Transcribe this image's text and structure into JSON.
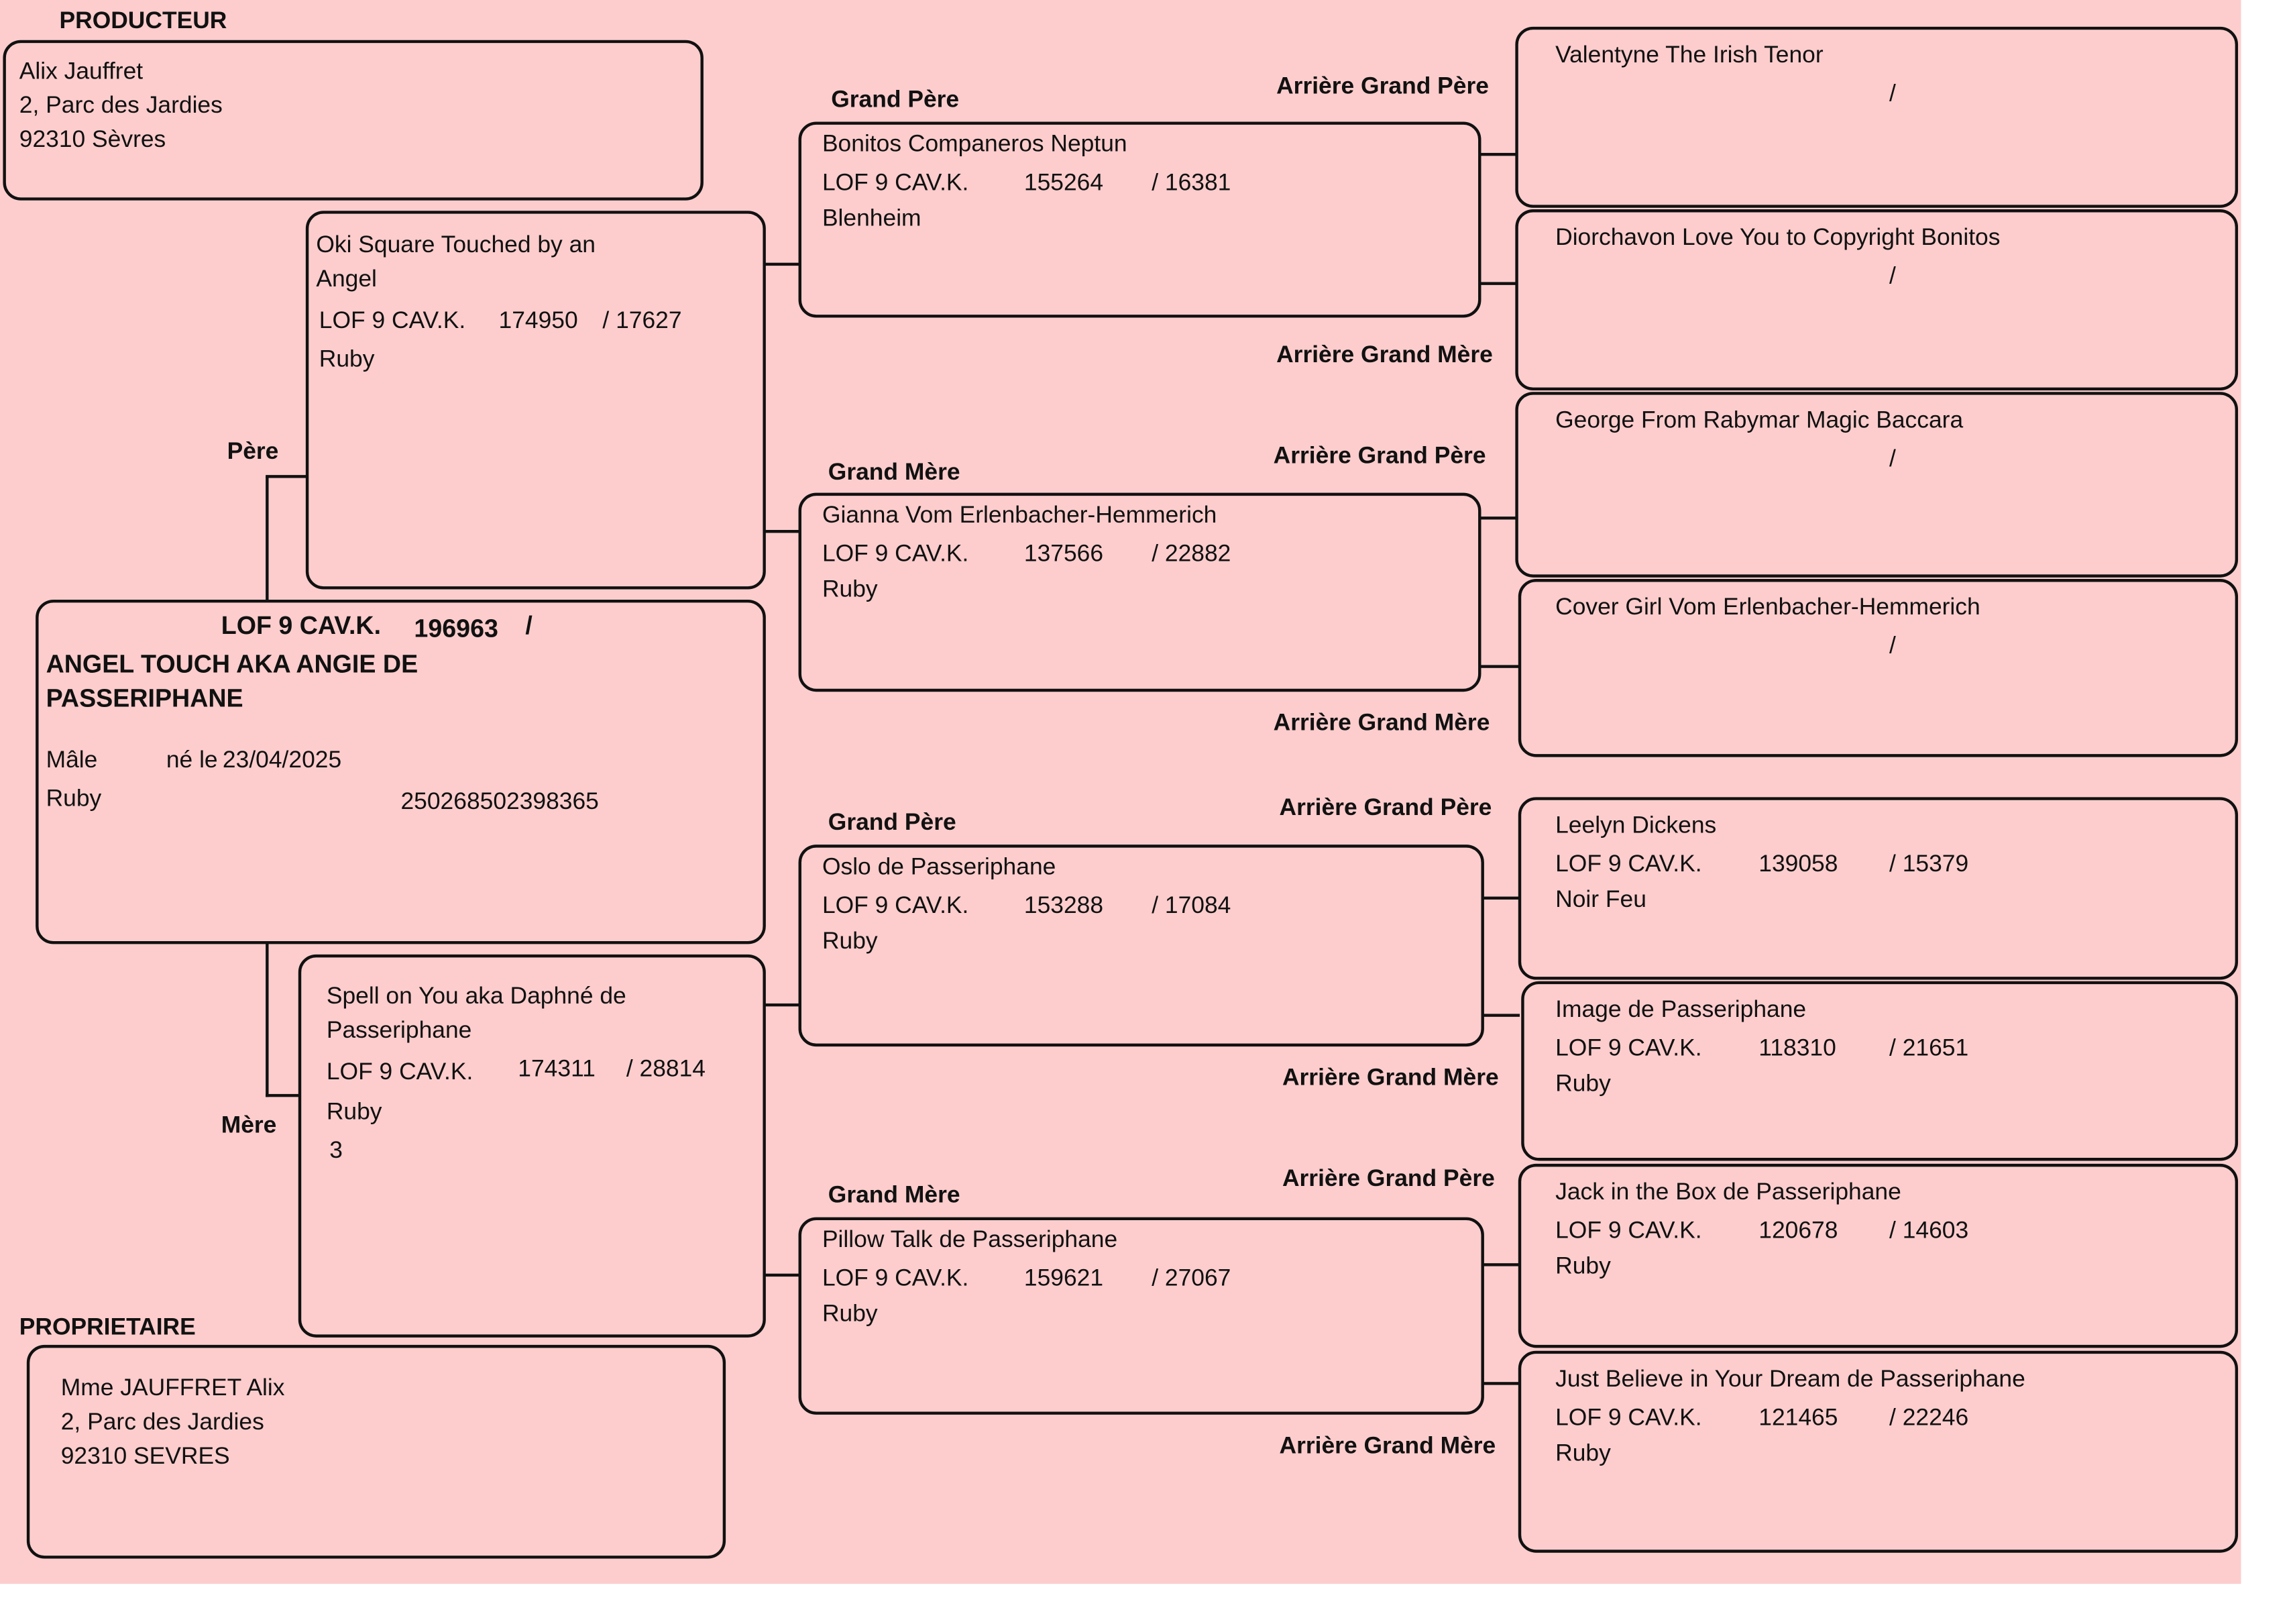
{
  "producer": {
    "label": "PRODUCTEUR",
    "name": "Alix Jauffret",
    "address": "2, Parc des Jardies",
    "city": "92310 Sèvres"
  },
  "owner": {
    "label": "PROPRIETAIRE",
    "name": "Mme JAUFFRET Alix",
    "address": "2, Parc des Jardies",
    "city": "92310 SEVRES"
  },
  "subject": {
    "registry": "LOF 9 CAV.K.",
    "number": "196963",
    "slash": "/",
    "name_line1": "ANGEL TOUCH AKA ANGIE DE",
    "name_line2": "PASSERIPHANE",
    "sex": "Mâle",
    "born_label": "né le",
    "birth_date": "23/04/2025",
    "color": "Ruby",
    "id_number": "250268502398365"
  },
  "sire": {
    "label": "Père",
    "name_line1": "Oki Square Touched by an",
    "name_line2": "Angel",
    "registry": "LOF 9 CAV.K.",
    "number": "174950",
    "sub": "/ 17627",
    "color": "Ruby"
  },
  "dam": {
    "label": "Mère",
    "name_line1": "Spell on You aka Daphné de",
    "name_line2": "Passeriphane",
    "registry": "LOF 9 CAV.K.",
    "number": "174311",
    "sub": "/ 28814",
    "color": "Ruby",
    "extra": "3"
  },
  "grandparents": [
    {
      "label": "Grand Père",
      "name": "Bonitos Companeros Neptun",
      "registry": "LOF 9 CAV.K.",
      "number": "155264",
      "sub": "/ 16381",
      "color": "Blenheim"
    },
    {
      "label": "Grand Mère",
      "name": "Gianna Vom Erlenbacher-Hemmerich",
      "registry": "LOF 9 CAV.K.",
      "number": "137566",
      "sub": "/ 22882",
      "color": "Ruby"
    },
    {
      "label": "Grand Père",
      "name": "Oslo de Passeriphane",
      "registry": "LOF 9 CAV.K.",
      "number": "153288",
      "sub": "/ 17084",
      "color": "Ruby"
    },
    {
      "label": "Grand Mère",
      "name": "Pillow Talk de Passeriphane",
      "registry": "LOF 9 CAV.K.",
      "number": "159621",
      "sub": "/ 27067",
      "color": "Ruby"
    }
  ],
  "great_grandparents": [
    {
      "label": "Arrière Grand Père",
      "name": "Valentyne The Irish Tenor",
      "registry": "",
      "number": "",
      "sub": "/",
      "color": ""
    },
    {
      "label": "Arrière Grand Mère",
      "name": "Diorchavon Love You to Copyright Bonitos",
      "registry": "",
      "number": "",
      "sub": "/",
      "color": ""
    },
    {
      "label": "Arrière Grand Père",
      "name": "George From Rabymar Magic Baccara",
      "registry": "",
      "number": "",
      "sub": "/",
      "color": ""
    },
    {
      "label": "Arrière Grand Mère",
      "name": "Cover Girl Vom Erlenbacher-Hemmerich",
      "registry": "",
      "number": "",
      "sub": "/",
      "color": ""
    },
    {
      "label": "Arrière Grand Père",
      "name": "Leelyn Dickens",
      "registry": "LOF 9 CAV.K.",
      "number": "139058",
      "sub": "/ 15379",
      "color": "Noir Feu"
    },
    {
      "label": "Arrière Grand Mère",
      "name": "Image de Passeriphane",
      "registry": "LOF 9 CAV.K.",
      "number": "118310",
      "sub": "/ 21651",
      "color": "Ruby"
    },
    {
      "label": "Arrière Grand Père",
      "name": "Jack in the Box de Passeriphane",
      "registry": "LOF 9 CAV.K.",
      "number": "120678",
      "sub": "/ 14603",
      "color": "Ruby"
    },
    {
      "label": "Arrière Grand Mère",
      "name": "Just Believe in Your Dream de Passeriphane",
      "registry": "LOF 9 CAV.K.",
      "number": "121465",
      "sub": "/ 22246",
      "color": "Ruby"
    }
  ],
  "colors": {
    "background": "#fdcdcd",
    "border": "#111111"
  }
}
